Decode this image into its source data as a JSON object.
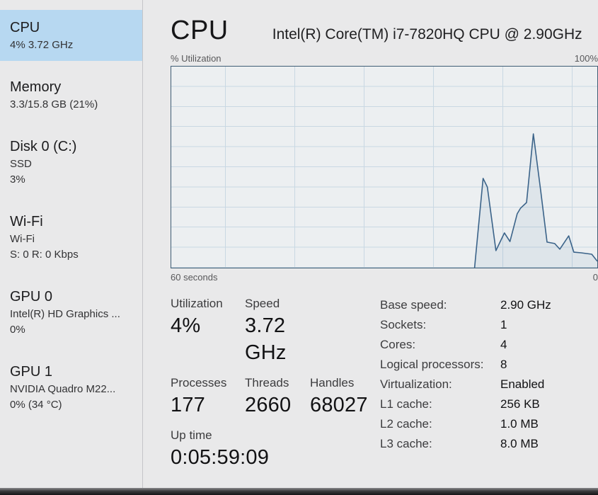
{
  "header": {
    "title": "CPU",
    "subtitle": "Intel(R) Core(TM) i7-7820HQ CPU @ 2.90GHz"
  },
  "sidebar": {
    "items": [
      {
        "id": "cpu",
        "title": "CPU",
        "line2": "4% 3.72 GHz",
        "selected": true
      },
      {
        "id": "memory",
        "title": "Memory",
        "line2": "3.3/15.8 GB (21%)"
      },
      {
        "id": "disk0",
        "title": "Disk 0 (C:)",
        "line2": "SSD",
        "line3": "3%"
      },
      {
        "id": "wifi",
        "title": "Wi-Fi",
        "line2": "Wi-Fi",
        "line3": "S: 0 R: 0 Kbps"
      },
      {
        "id": "gpu0",
        "title": "GPU 0",
        "line2": "Intel(R) HD Graphics ...",
        "line3": "0%"
      },
      {
        "id": "gpu1",
        "title": "GPU 1",
        "line2": "NVIDIA Quadro M22...",
        "line3": "0% (34 °C)"
      }
    ]
  },
  "chart": {
    "top_left_label": "% Utilization",
    "top_right_label": "100%",
    "bottom_left_label": "60 seconds",
    "bottom_right_label": "0"
  },
  "chart_data": {
    "type": "area",
    "title": "% Utilization",
    "xlabel": "60 seconds",
    "ylim": [
      0,
      100
    ],
    "y_max_label": "100%",
    "grid": true,
    "series": [
      {
        "name": "CPU utilization (%)",
        "points_x_percent_of_width_y_utilization": [
          [
            71.2,
            0
          ],
          [
            73.2,
            44.4
          ],
          [
            74.2,
            40.1
          ],
          [
            76.2,
            8.5
          ],
          [
            78.2,
            17.3
          ],
          [
            79.5,
            13.0
          ],
          [
            81.2,
            26.8
          ],
          [
            82.0,
            29.6
          ],
          [
            83.4,
            32.4
          ],
          [
            85.0,
            66.5
          ],
          [
            86.7,
            38.4
          ],
          [
            88.2,
            12.7
          ],
          [
            90.0,
            12.0
          ],
          [
            91.2,
            9.2
          ],
          [
            93.3,
            15.8
          ],
          [
            94.5,
            7.7
          ],
          [
            96.2,
            7.4
          ],
          [
            98.7,
            6.7
          ],
          [
            100,
            3.2
          ]
        ]
      }
    ]
  },
  "stats": {
    "utilization": {
      "label": "Utilization",
      "value": "4%"
    },
    "speed": {
      "label": "Speed",
      "value": "3.72 GHz"
    },
    "processes": {
      "label": "Processes",
      "value": "177"
    },
    "threads": {
      "label": "Threads",
      "value": "2660"
    },
    "handles": {
      "label": "Handles",
      "value": "68027"
    },
    "uptime": {
      "label": "Up time",
      "value": "0:05:59:09"
    }
  },
  "details": [
    {
      "label": "Base speed:",
      "value": "2.90 GHz"
    },
    {
      "label": "Sockets:",
      "value": "1"
    },
    {
      "label": "Cores:",
      "value": "4"
    },
    {
      "label": "Logical processors:",
      "value": "8"
    },
    {
      "label": "Virtualization:",
      "value": "Enabled"
    },
    {
      "label": "L1 cache:",
      "value": "256 KB"
    },
    {
      "label": "L2 cache:",
      "value": "1.0 MB"
    },
    {
      "label": "L3 cache:",
      "value": "8.0 MB"
    }
  ],
  "colors": {
    "selected_item_bg": "#b7d8f1",
    "chart_border": "#3f5d75",
    "chart_background": "#eceff1",
    "gridline": "#c9d8e3",
    "line": "#3b6389",
    "line_fill": "rgba(70,110,150,0.08)"
  }
}
